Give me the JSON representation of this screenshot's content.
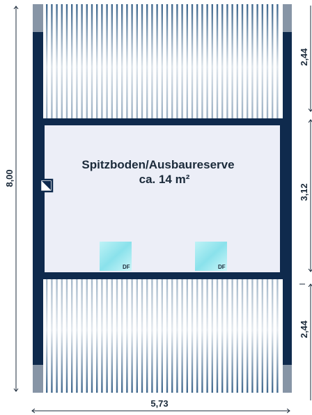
{
  "room": {
    "name": "Spitzboden/Ausbaureserve",
    "area": "ca. 14 m²"
  },
  "windows": [
    {
      "label": "DF"
    },
    {
      "label": "DF"
    }
  ],
  "dimensions": {
    "width": "5,73",
    "height": "8,00",
    "right_top": "2,44",
    "right_middle": "3,12",
    "right_bottom": "2,44"
  },
  "colors": {
    "wall": "#0f2a4d",
    "room_fill": "#eceef7",
    "roof_stripe": "#1f4e7a",
    "window": "#8ee6ee",
    "dim_line": "#1b2a3a"
  }
}
